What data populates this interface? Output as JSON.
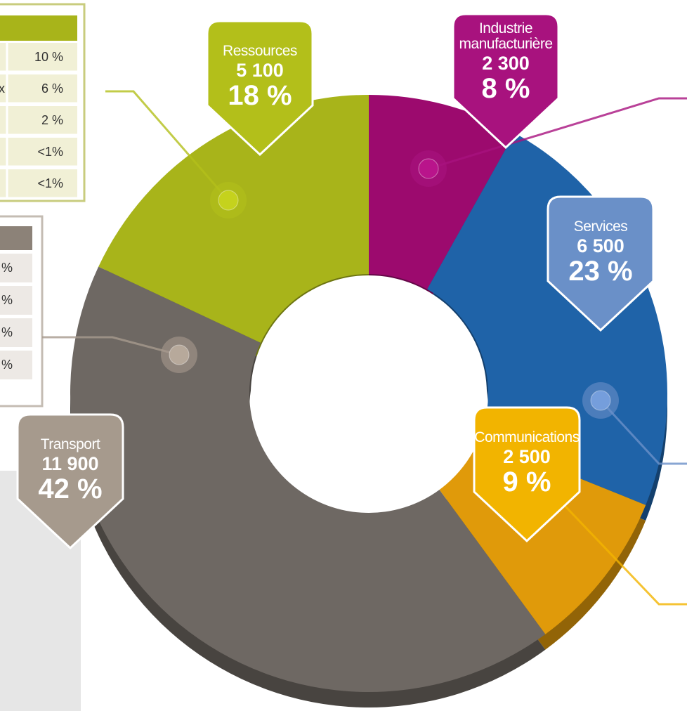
{
  "chart_data": {
    "type": "donut",
    "categories": [
      "Industrie manufacturière",
      "Services",
      "Communications",
      "Transport",
      "Ressources"
    ],
    "values": [
      2300,
      6500,
      2500,
      11900,
      5100
    ],
    "value_labels": [
      "2 300",
      "6 500",
      "2 500",
      "11 900",
      "5 100"
    ],
    "percent_labels": [
      "8 %",
      "23 %",
      "9 %",
      "42 %",
      "18 %"
    ],
    "colors": [
      "#9c0a6e",
      "#1f63a8",
      "#e09a0a",
      "#6e6863",
      "#a8b41a"
    ],
    "badge_colors": [
      "#a8127e",
      "#6a90c8",
      "#f2b400",
      "#a69a8d",
      "#b3bf1a"
    ]
  },
  "tables": [
    {
      "rows": [
        [
          "",
          "10 %"
        ],
        [
          "x",
          "6 %"
        ],
        [
          "",
          "2 %"
        ],
        [
          "",
          "<1%"
        ],
        [
          "",
          "<1%"
        ]
      ]
    },
    {
      "rows": [
        [
          "%"
        ],
        [
          "%"
        ],
        [
          "%"
        ],
        [
          "%"
        ]
      ]
    }
  ]
}
